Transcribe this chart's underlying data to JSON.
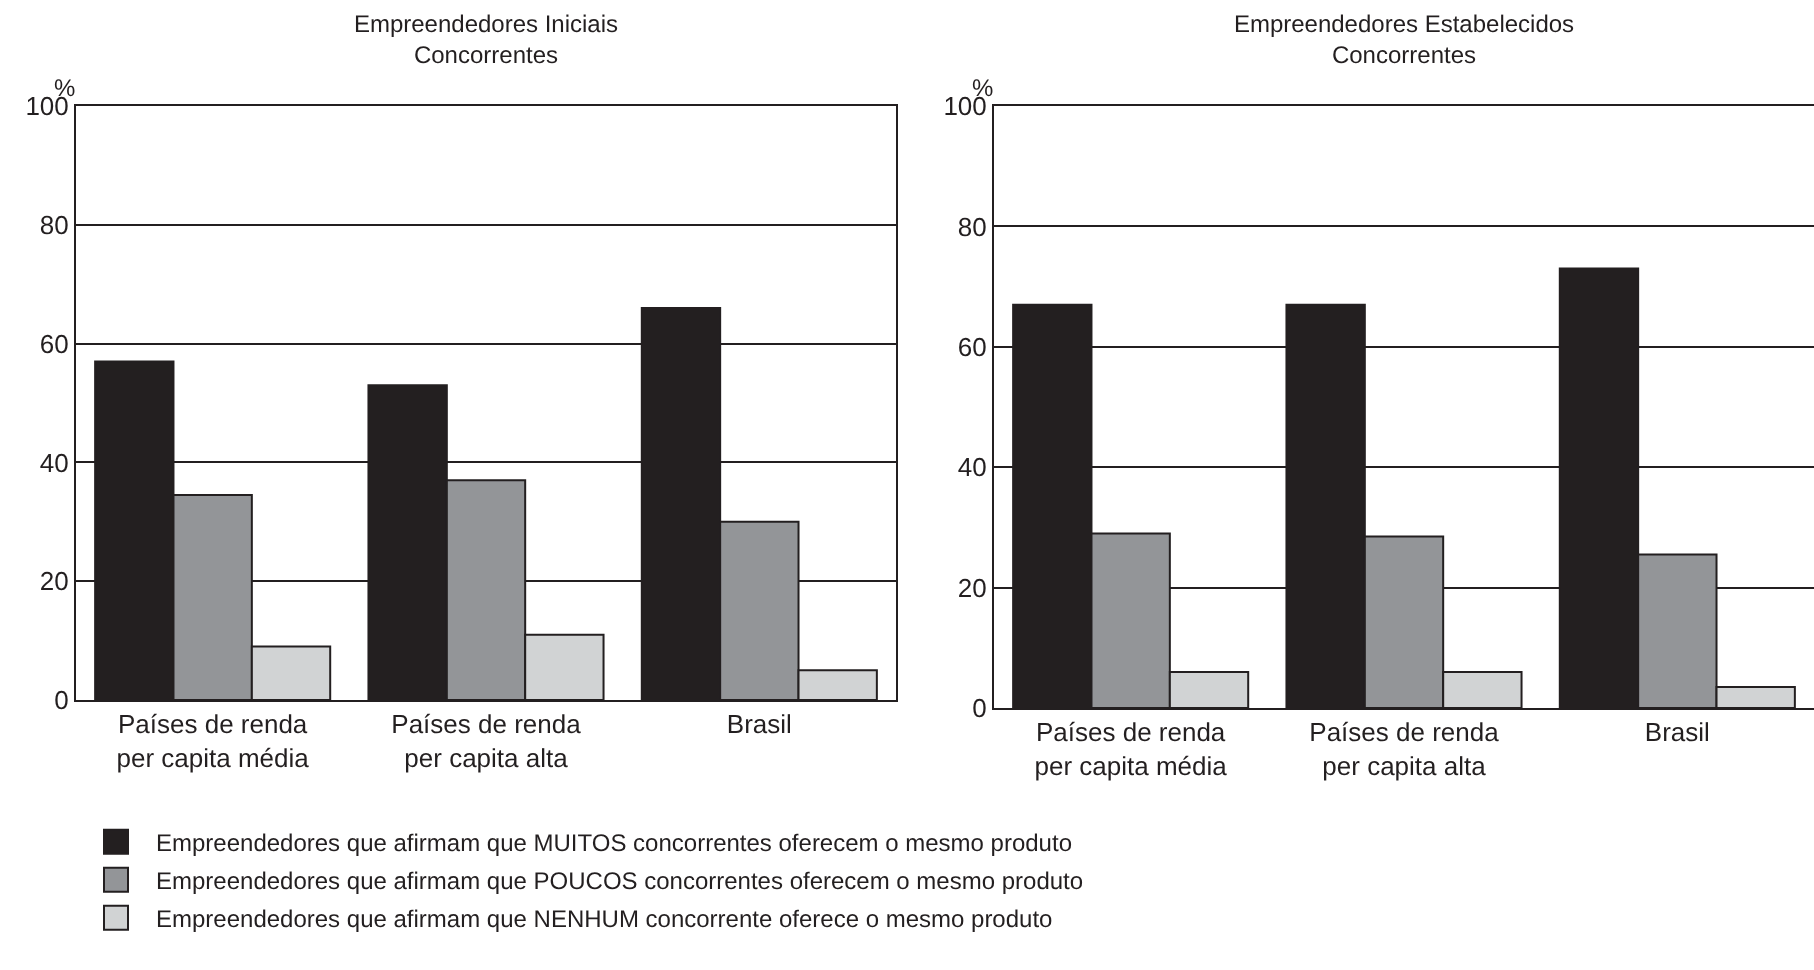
{
  "chart_data": [
    {
      "type": "bar",
      "title": "Empreendedores Iniciais\nConcorrentes",
      "ylabel": "%",
      "categories": [
        "Países de renda per capita média",
        "Países de renda per capita alta",
        "Brasil"
      ],
      "series": [
        {
          "name": "Empreendedores que afirmam que MUITOS concorrentes oferecem o mesmo produto",
          "color": "#231f20",
          "values": [
            57,
            53,
            66
          ]
        },
        {
          "name": "Empreendedores que afirmam que POUCOS concorrentes oferecem o mesmo produto",
          "color": "#939598",
          "values": [
            34.5,
            37,
            30
          ]
        },
        {
          "name": "Empreendedores que afirmam que NENHUM concorrente oferece o mesmo produto",
          "color": "#d1d3d4",
          "values": [
            9,
            11,
            5
          ]
        }
      ],
      "ylim": [
        0,
        100
      ],
      "yticks": [
        0,
        20,
        40,
        60,
        80,
        100
      ],
      "grid": "y",
      "legend": "bottom"
    },
    {
      "type": "bar",
      "title": "Empreendedores Estabelecidos\nConcorrentes",
      "ylabel": "%",
      "categories": [
        "Países de renda per capita média",
        "Países de renda per capita alta",
        "Brasil"
      ],
      "series": [
        {
          "color": "#231f20",
          "values": [
            67,
            67,
            73
          ]
        },
        {
          "color": "#939598",
          "values": [
            29,
            28.5,
            25.5
          ]
        },
        {
          "color": "#d1d3d4",
          "values": [
            6,
            6,
            3.5
          ]
        }
      ],
      "ylim": [
        0,
        100
      ],
      "yticks": [
        0,
        20,
        40,
        60,
        80,
        100
      ],
      "grid": "y"
    }
  ]
}
